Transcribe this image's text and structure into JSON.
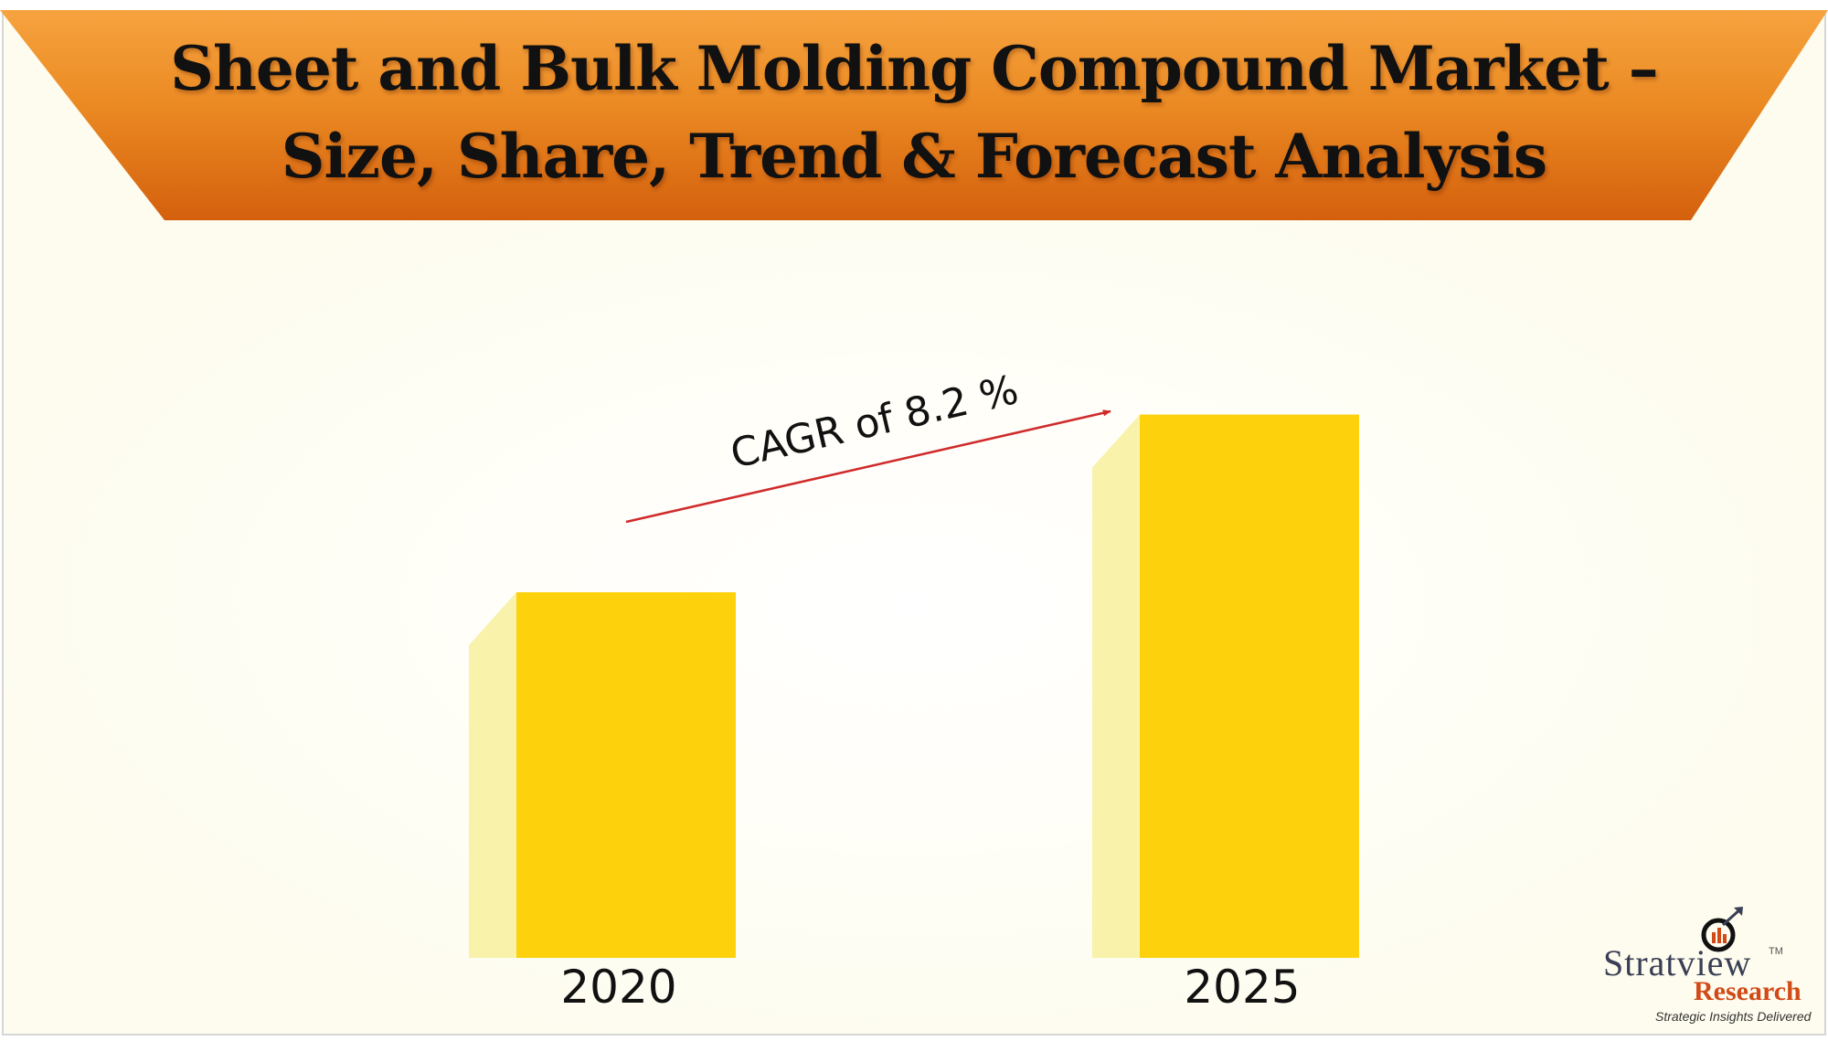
{
  "title": {
    "line1": "Sheet and Bulk Molding Compound Market –",
    "line2": "Size, Share, Trend & Forecast Analysis"
  },
  "colors": {
    "bar": "#fdd20c",
    "bar_shadow": "#f9f2ab",
    "arrow": "#d02a2a",
    "banner_top": "#f6a33f",
    "banner_bottom": "#d4600d"
  },
  "chart_data": {
    "type": "bar",
    "categories": [
      "2020",
      "2025"
    ],
    "values": [
      1.0,
      1.486
    ],
    "ylim": [
      0,
      1.55
    ],
    "grid": false,
    "annotation": "CAGR of 8.2 %"
  },
  "brand": {
    "name": "Stratview",
    "trademark": "TM",
    "sub": "Research",
    "tagline": "Strategic Insights Delivered"
  }
}
